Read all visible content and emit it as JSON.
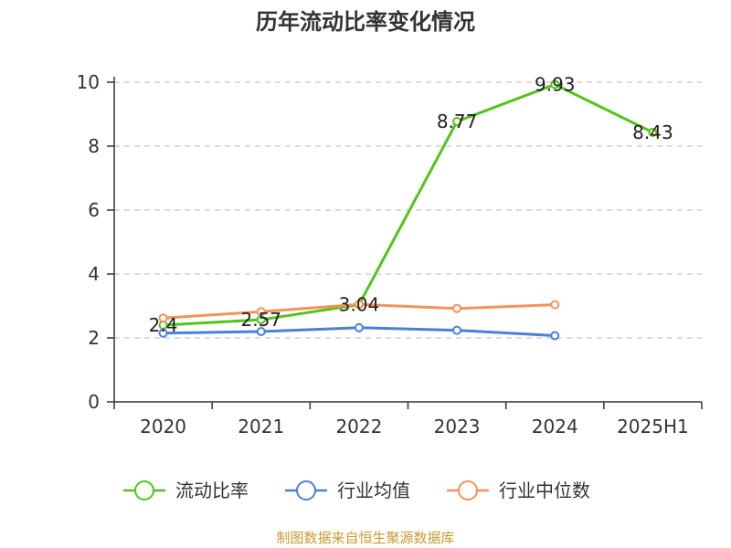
{
  "chart_data": {
    "type": "line",
    "title": "历年流动比率变化情况",
    "categories": [
      "2020",
      "2021",
      "2022",
      "2023",
      "2024",
      "2025H1"
    ],
    "ylim": [
      0,
      10
    ],
    "yticks": [
      0,
      2,
      4,
      6,
      8,
      10
    ],
    "grid": "horizontal-dashed",
    "legend_position": "bottom",
    "series": [
      {
        "name": "流动比率",
        "color": "#52c41a",
        "values": [
          2.4,
          2.57,
          3.04,
          8.77,
          9.93,
          8.43
        ],
        "labels": [
          "2.4",
          "2.57",
          "3.04",
          "8.77",
          "9.93",
          "8.43"
        ]
      },
      {
        "name": "行业均值",
        "color": "#4a7fdc",
        "values": [
          2.15,
          2.2,
          2.32,
          2.24,
          2.07,
          null
        ]
      },
      {
        "name": "行业中位数",
        "color": "#f5915c",
        "values": [
          2.62,
          2.82,
          3.05,
          2.92,
          3.04,
          null
        ]
      }
    ]
  },
  "source_text": "制图数据来自恒生聚源数据库",
  "source_color": "#c99a2e"
}
